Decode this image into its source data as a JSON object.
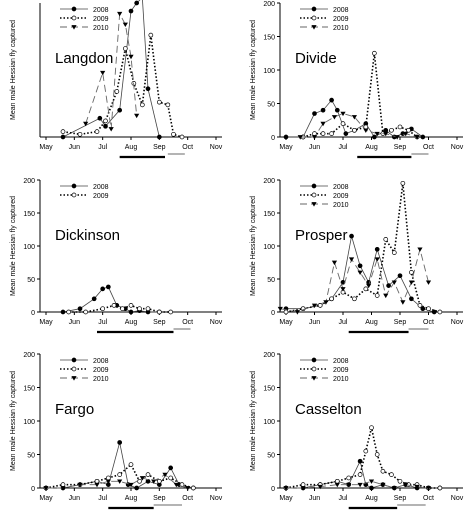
{
  "shared": {
    "ylabel": "Mean male Hessian fly captured",
    "months": [
      "May",
      "Jun",
      "Jul",
      "Aug",
      "Sep",
      "Oct",
      "Nov"
    ],
    "yticks_200": [
      0,
      50,
      100,
      150,
      200
    ],
    "yticks_100": [
      0,
      50,
      100
    ]
  },
  "chart_data": [
    {
      "type": "line",
      "site": "Langdon",
      "ylim": [
        0,
        500
      ],
      "yticks": [],
      "legend": [
        "2008",
        "2009",
        "2010"
      ],
      "series": [
        {
          "name": "2008",
          "style": "solid-filled-circle",
          "x": [
            5.6,
            6.9,
            7.1,
            7.6,
            8.0,
            8.2,
            8.4,
            8.6,
            9.0
          ],
          "y": [
            0,
            70,
            40,
            100,
            470,
            500,
            520,
            180,
            0
          ]
        },
        {
          "name": "2009",
          "style": "dotted-open-circle",
          "x": [
            5.6,
            6.2,
            6.8,
            7.1,
            7.5,
            7.8,
            8.1,
            8.4,
            8.7,
            9.0,
            9.3,
            9.5,
            9.8
          ],
          "y": [
            20,
            10,
            20,
            60,
            170,
            330,
            200,
            120,
            380,
            130,
            120,
            10,
            0
          ]
        },
        {
          "name": "2010",
          "style": "dashed-triangle",
          "x": [
            6.4,
            7.0,
            7.3,
            7.6,
            7.8,
            8.0,
            8.2
          ],
          "y": [
            50,
            240,
            30,
            460,
            420,
            300,
            80
          ]
        }
      ]
    },
    {
      "type": "line",
      "site": "Divide",
      "ylim": [
        0,
        200
      ],
      "legend": [
        "2008",
        "2009",
        "2010"
      ],
      "series": [
        {
          "name": "2008",
          "style": "solid-filled-circle",
          "x": [
            5.0,
            5.6,
            6.0,
            6.3,
            6.6,
            6.8,
            7.1,
            7.4,
            7.8,
            8.1,
            8.5,
            8.8,
            9.1,
            9.4,
            9.8
          ],
          "y": [
            0,
            0,
            35,
            40,
            55,
            40,
            5,
            10,
            20,
            0,
            10,
            0,
            5,
            12,
            0
          ]
        },
        {
          "name": "2009",
          "style": "dotted-open-circle",
          "x": [
            5.6,
            6.0,
            6.3,
            6.6,
            7.0,
            7.4,
            7.8,
            8.1,
            8.4,
            8.7,
            9.0,
            9.3,
            9.6
          ],
          "y": [
            0,
            5,
            5,
            5,
            20,
            10,
            15,
            125,
            5,
            10,
            15,
            10,
            0
          ]
        },
        {
          "name": "2010",
          "style": "dashed-triangle",
          "x": [
            5.5,
            6.0,
            6.3,
            6.7,
            7.0,
            7.4,
            7.8,
            8.2,
            8.5,
            8.9,
            9.2,
            9.6
          ],
          "y": [
            0,
            0,
            20,
            30,
            35,
            30,
            10,
            5,
            5,
            0,
            5,
            0
          ]
        }
      ]
    },
    {
      "type": "line",
      "site": "Dickinson",
      "ylim": [
        0,
        200
      ],
      "legend": [
        "2008",
        "2009"
      ],
      "series": [
        {
          "name": "2008",
          "style": "solid-filled-circle",
          "x": [
            5.6,
            6.2,
            6.7,
            7.0,
            7.2,
            7.5,
            7.8,
            8.0,
            8.3,
            8.6,
            9.0
          ],
          "y": [
            0,
            5,
            20,
            35,
            38,
            10,
            5,
            0,
            2,
            0,
            0
          ]
        },
        {
          "name": "2009",
          "style": "dotted-open-circle",
          "x": [
            5.8,
            6.4,
            7.0,
            7.4,
            7.7,
            8.0,
            8.3,
            8.6,
            9.0,
            9.4
          ],
          "y": [
            0,
            0,
            5,
            10,
            5,
            10,
            5,
            5,
            0,
            0
          ]
        }
      ]
    },
    {
      "type": "line",
      "site": "Prosper",
      "ylim": [
        0,
        200
      ],
      "legend": [
        "2008",
        "2009",
        "2010"
      ],
      "series": [
        {
          "name": "2008",
          "style": "solid-filled-circle",
          "x": [
            5.0,
            5.6,
            6.2,
            6.6,
            7.0,
            7.3,
            7.6,
            7.9,
            8.2,
            8.6,
            9.0,
            9.4,
            9.8,
            10.2
          ],
          "y": [
            5,
            5,
            10,
            20,
            45,
            115,
            70,
            45,
            95,
            40,
            55,
            20,
            5,
            0
          ]
        },
        {
          "name": "2009",
          "style": "dotted-open-circle",
          "x": [
            5.0,
            5.6,
            6.2,
            6.6,
            7.0,
            7.4,
            7.8,
            8.2,
            8.5,
            8.8,
            9.1,
            9.4,
            9.7,
            10.0,
            10.4
          ],
          "y": [
            0,
            5,
            10,
            20,
            30,
            20,
            35,
            25,
            110,
            90,
            195,
            60,
            10,
            5,
            0
          ]
        },
        {
          "name": "2010",
          "style": "dashed-triangle",
          "x": [
            4.8,
            5.4,
            6.0,
            6.4,
            6.7,
            7.0,
            7.3,
            7.6,
            7.9,
            8.2,
            8.5,
            8.8,
            9.1,
            9.4,
            9.7,
            10.0
          ],
          "y": [
            5,
            0,
            10,
            15,
            75,
            35,
            80,
            60,
            40,
            80,
            25,
            45,
            15,
            45,
            95,
            45
          ]
        }
      ]
    },
    {
      "type": "line",
      "site": "Fargo",
      "ylim": [
        0,
        200
      ],
      "legend": [
        "2008",
        "2009",
        "2010"
      ],
      "series": [
        {
          "name": "2008",
          "style": "solid-filled-circle",
          "x": [
            5.0,
            5.6,
            6.2,
            6.8,
            7.2,
            7.6,
            7.9,
            8.2,
            8.6,
            9.0,
            9.4,
            9.7,
            10.2
          ],
          "y": [
            0,
            0,
            5,
            10,
            5,
            68,
            5,
            0,
            10,
            5,
            30,
            5,
            0
          ]
        },
        {
          "name": "2009",
          "style": "dotted-open-circle",
          "x": [
            5.0,
            5.6,
            6.2,
            6.8,
            7.2,
            7.6,
            8.0,
            8.3,
            8.6,
            9.0,
            9.4,
            9.8,
            10.2
          ],
          "y": [
            0,
            5,
            5,
            10,
            15,
            20,
            35,
            10,
            20,
            10,
            15,
            5,
            0
          ]
        },
        {
          "name": "2010",
          "style": "dashed-triangle",
          "x": [
            5.0,
            5.6,
            6.2,
            6.8,
            7.2,
            7.6,
            8.0,
            8.4,
            8.8,
            9.2,
            9.6,
            10.0
          ],
          "y": [
            0,
            0,
            5,
            5,
            10,
            10,
            5,
            15,
            10,
            20,
            5,
            0
          ]
        }
      ]
    },
    {
      "type": "line",
      "site": "Casselton",
      "ylim": [
        0,
        200
      ],
      "legend": [
        "2008",
        "2009",
        "2010"
      ],
      "series": [
        {
          "name": "2008",
          "style": "solid-filled-circle",
          "x": [
            5.0,
            5.6,
            6.2,
            6.8,
            7.2,
            7.6,
            7.8,
            8.0,
            8.4,
            8.8,
            9.2,
            9.6,
            10.0,
            10.4
          ],
          "y": [
            0,
            0,
            5,
            10,
            5,
            40,
            5,
            0,
            5,
            0,
            5,
            0,
            0,
            0
          ]
        },
        {
          "name": "2009",
          "style": "dotted-open-circle",
          "x": [
            5.0,
            5.6,
            6.2,
            6.8,
            7.2,
            7.6,
            7.8,
            8.0,
            8.2,
            8.4,
            8.7,
            9.0,
            9.3,
            9.6,
            10.0,
            10.4
          ],
          "y": [
            0,
            5,
            5,
            10,
            15,
            20,
            55,
            90,
            50,
            25,
            20,
            10,
            5,
            5,
            0,
            0
          ]
        },
        {
          "name": "2010",
          "style": "dashed-triangle",
          "x": [
            5.0,
            5.6,
            6.2,
            6.8,
            7.2,
            7.6,
            8.0,
            8.4,
            8.8,
            9.2,
            9.6,
            10.0
          ],
          "y": [
            0,
            0,
            2,
            5,
            5,
            5,
            10,
            5,
            0,
            5,
            2,
            0
          ]
        }
      ]
    }
  ]
}
